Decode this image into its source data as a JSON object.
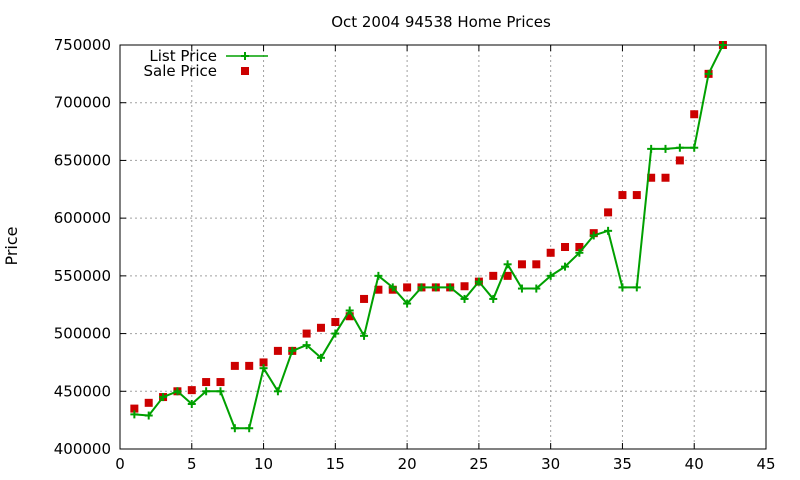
{
  "chart_data": {
    "type": "line",
    "title": "Oct 2004 94538 Home Prices",
    "xlabel": "",
    "ylabel": "Price",
    "xlim": [
      0,
      45
    ],
    "ylim": [
      400000,
      750000
    ],
    "xticks": [
      "0",
      "5",
      "10",
      "15",
      "20",
      "25",
      "30",
      "35",
      "40",
      "45"
    ],
    "yticks": [
      "400000",
      "450000",
      "500000",
      "550000",
      "600000",
      "650000",
      "700000",
      "750000"
    ],
    "grid": true,
    "legend_position": "top-left",
    "x": [
      1,
      2,
      3,
      4,
      5,
      6,
      7,
      8,
      9,
      10,
      11,
      12,
      13,
      14,
      15,
      16,
      17,
      18,
      19,
      20,
      21,
      22,
      23,
      24,
      25,
      26,
      27,
      28,
      29,
      30,
      31,
      32,
      33,
      34,
      35,
      36,
      37,
      38,
      39,
      40,
      41,
      42
    ],
    "series": [
      {
        "name": "List Price",
        "style": "linespoints",
        "color": "#00a000",
        "marker": "plus",
        "values": [
          430000,
          429000,
          445000,
          450000,
          439000,
          450000,
          450000,
          418000,
          418000,
          470000,
          450000,
          485000,
          490000,
          479000,
          500000,
          520000,
          498000,
          550000,
          540000,
          526000,
          540000,
          540000,
          540000,
          530000,
          545000,
          530000,
          560000,
          539000,
          539000,
          550000,
          558000,
          570000,
          585000,
          589000,
          540000,
          540000,
          660000,
          660000,
          661000,
          661000,
          725000,
          750000
        ]
      },
      {
        "name": "Sale Price",
        "style": "points",
        "color": "#cc0000",
        "marker": "square",
        "values": [
          435000,
          440000,
          445000,
          450000,
          451000,
          458000,
          458000,
          472000,
          472000,
          475000,
          485000,
          485000,
          500000,
          505000,
          510000,
          515000,
          530000,
          538000,
          538000,
          540000,
          540000,
          540000,
          540000,
          541000,
          545000,
          550000,
          550000,
          560000,
          560000,
          570000,
          575000,
          575000,
          587000,
          605000,
          620000,
          620000,
          635000,
          635000,
          650000,
          690000,
          725000,
          750000
        ]
      }
    ]
  }
}
